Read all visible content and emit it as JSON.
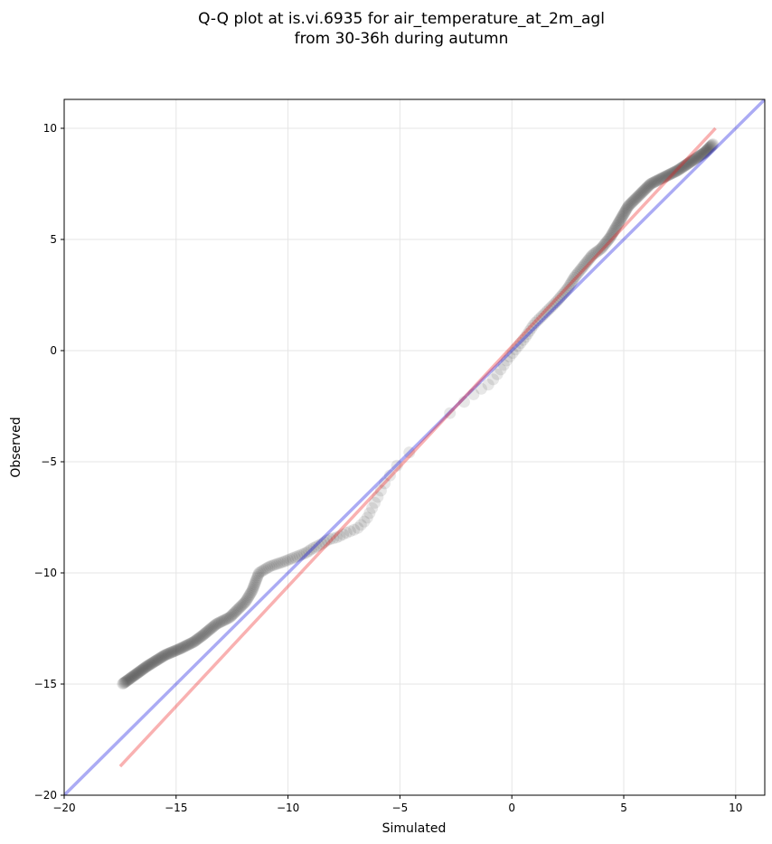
{
  "chart_data": {
    "type": "scatter",
    "title_line1": "Q-Q plot at is.vi.6935 for air_temperature_at_2m_agl",
    "title_line2": "from 30-36h during autumn",
    "xlabel": "Simulated",
    "ylabel": "Observed",
    "xlim": [
      -20,
      11.3
    ],
    "ylim": [
      -20,
      11.3
    ],
    "xticks": [
      -20,
      -15,
      -10,
      -5,
      0,
      5,
      10
    ],
    "yticks": [
      -20,
      -15,
      -10,
      -5,
      0,
      5,
      10
    ],
    "xtick_labels": [
      "−20",
      "−15",
      "−10",
      "−5",
      "0",
      "5",
      "10"
    ],
    "ytick_labels": [
      "−20",
      "−15",
      "−10",
      "−5",
      "0",
      "5",
      "10"
    ],
    "grid": true,
    "colors": {
      "points": "#444444",
      "identity_line": "#0000dd",
      "fit_line": "#ee1111",
      "grid": "#e5e5e5"
    },
    "identity_line": {
      "x": [
        -20,
        11.3
      ],
      "y": [
        -20,
        11.3
      ]
    },
    "fit_line": {
      "x": [
        -17.5,
        9.1
      ],
      "y": [
        -18.7,
        10.0
      ]
    },
    "quantile_curve": {
      "x": [
        -17.4,
        -16.3,
        -15.5,
        -14.8,
        -14.2,
        -13.8,
        -13.2,
        -12.6,
        -12.2,
        -11.9,
        -11.6,
        -11.3,
        -10.8,
        -10.2,
        -9.7,
        -9.2,
        -8.9,
        -8.5,
        -8.2,
        -7.8,
        -7.4,
        -6.9,
        -6.5,
        -6.2,
        -5.9,
        -5.7,
        -5.5,
        -5.3,
        -5.0,
        -4.6,
        -4.2,
        -3.8,
        -3.4,
        -3.0,
        -2.5,
        -2.0,
        -1.5,
        -1.0,
        -0.6,
        -0.2,
        0.2,
        0.6,
        1.0,
        1.5,
        2.0,
        2.5,
        2.8,
        3.2,
        3.6,
        4.0,
        4.4,
        4.8,
        5.2,
        5.7,
        6.2,
        6.8,
        7.4,
        8.0,
        8.6,
        9.0
      ],
      "y": [
        -15.0,
        -14.2,
        -13.7,
        -13.4,
        -13.1,
        -12.8,
        -12.3,
        -12.0,
        -11.6,
        -11.3,
        -10.8,
        -10.0,
        -9.7,
        -9.5,
        -9.3,
        -9.1,
        -8.9,
        -8.7,
        -8.5,
        -8.4,
        -8.2,
        -8.0,
        -7.6,
        -7.0,
        -6.4,
        -6.0,
        -5.7,
        -5.4,
        -5.0,
        -4.6,
        -4.2,
        -3.7,
        -3.3,
        -3.0,
        -2.6,
        -2.2,
        -1.8,
        -1.5,
        -1.0,
        -0.4,
        0.1,
        0.6,
        1.2,
        1.7,
        2.2,
        2.8,
        3.3,
        3.8,
        4.3,
        4.6,
        5.1,
        5.8,
        6.5,
        7.0,
        7.5,
        7.8,
        8.1,
        8.5,
        8.9,
        9.3
      ]
    },
    "point_count": 380
  }
}
